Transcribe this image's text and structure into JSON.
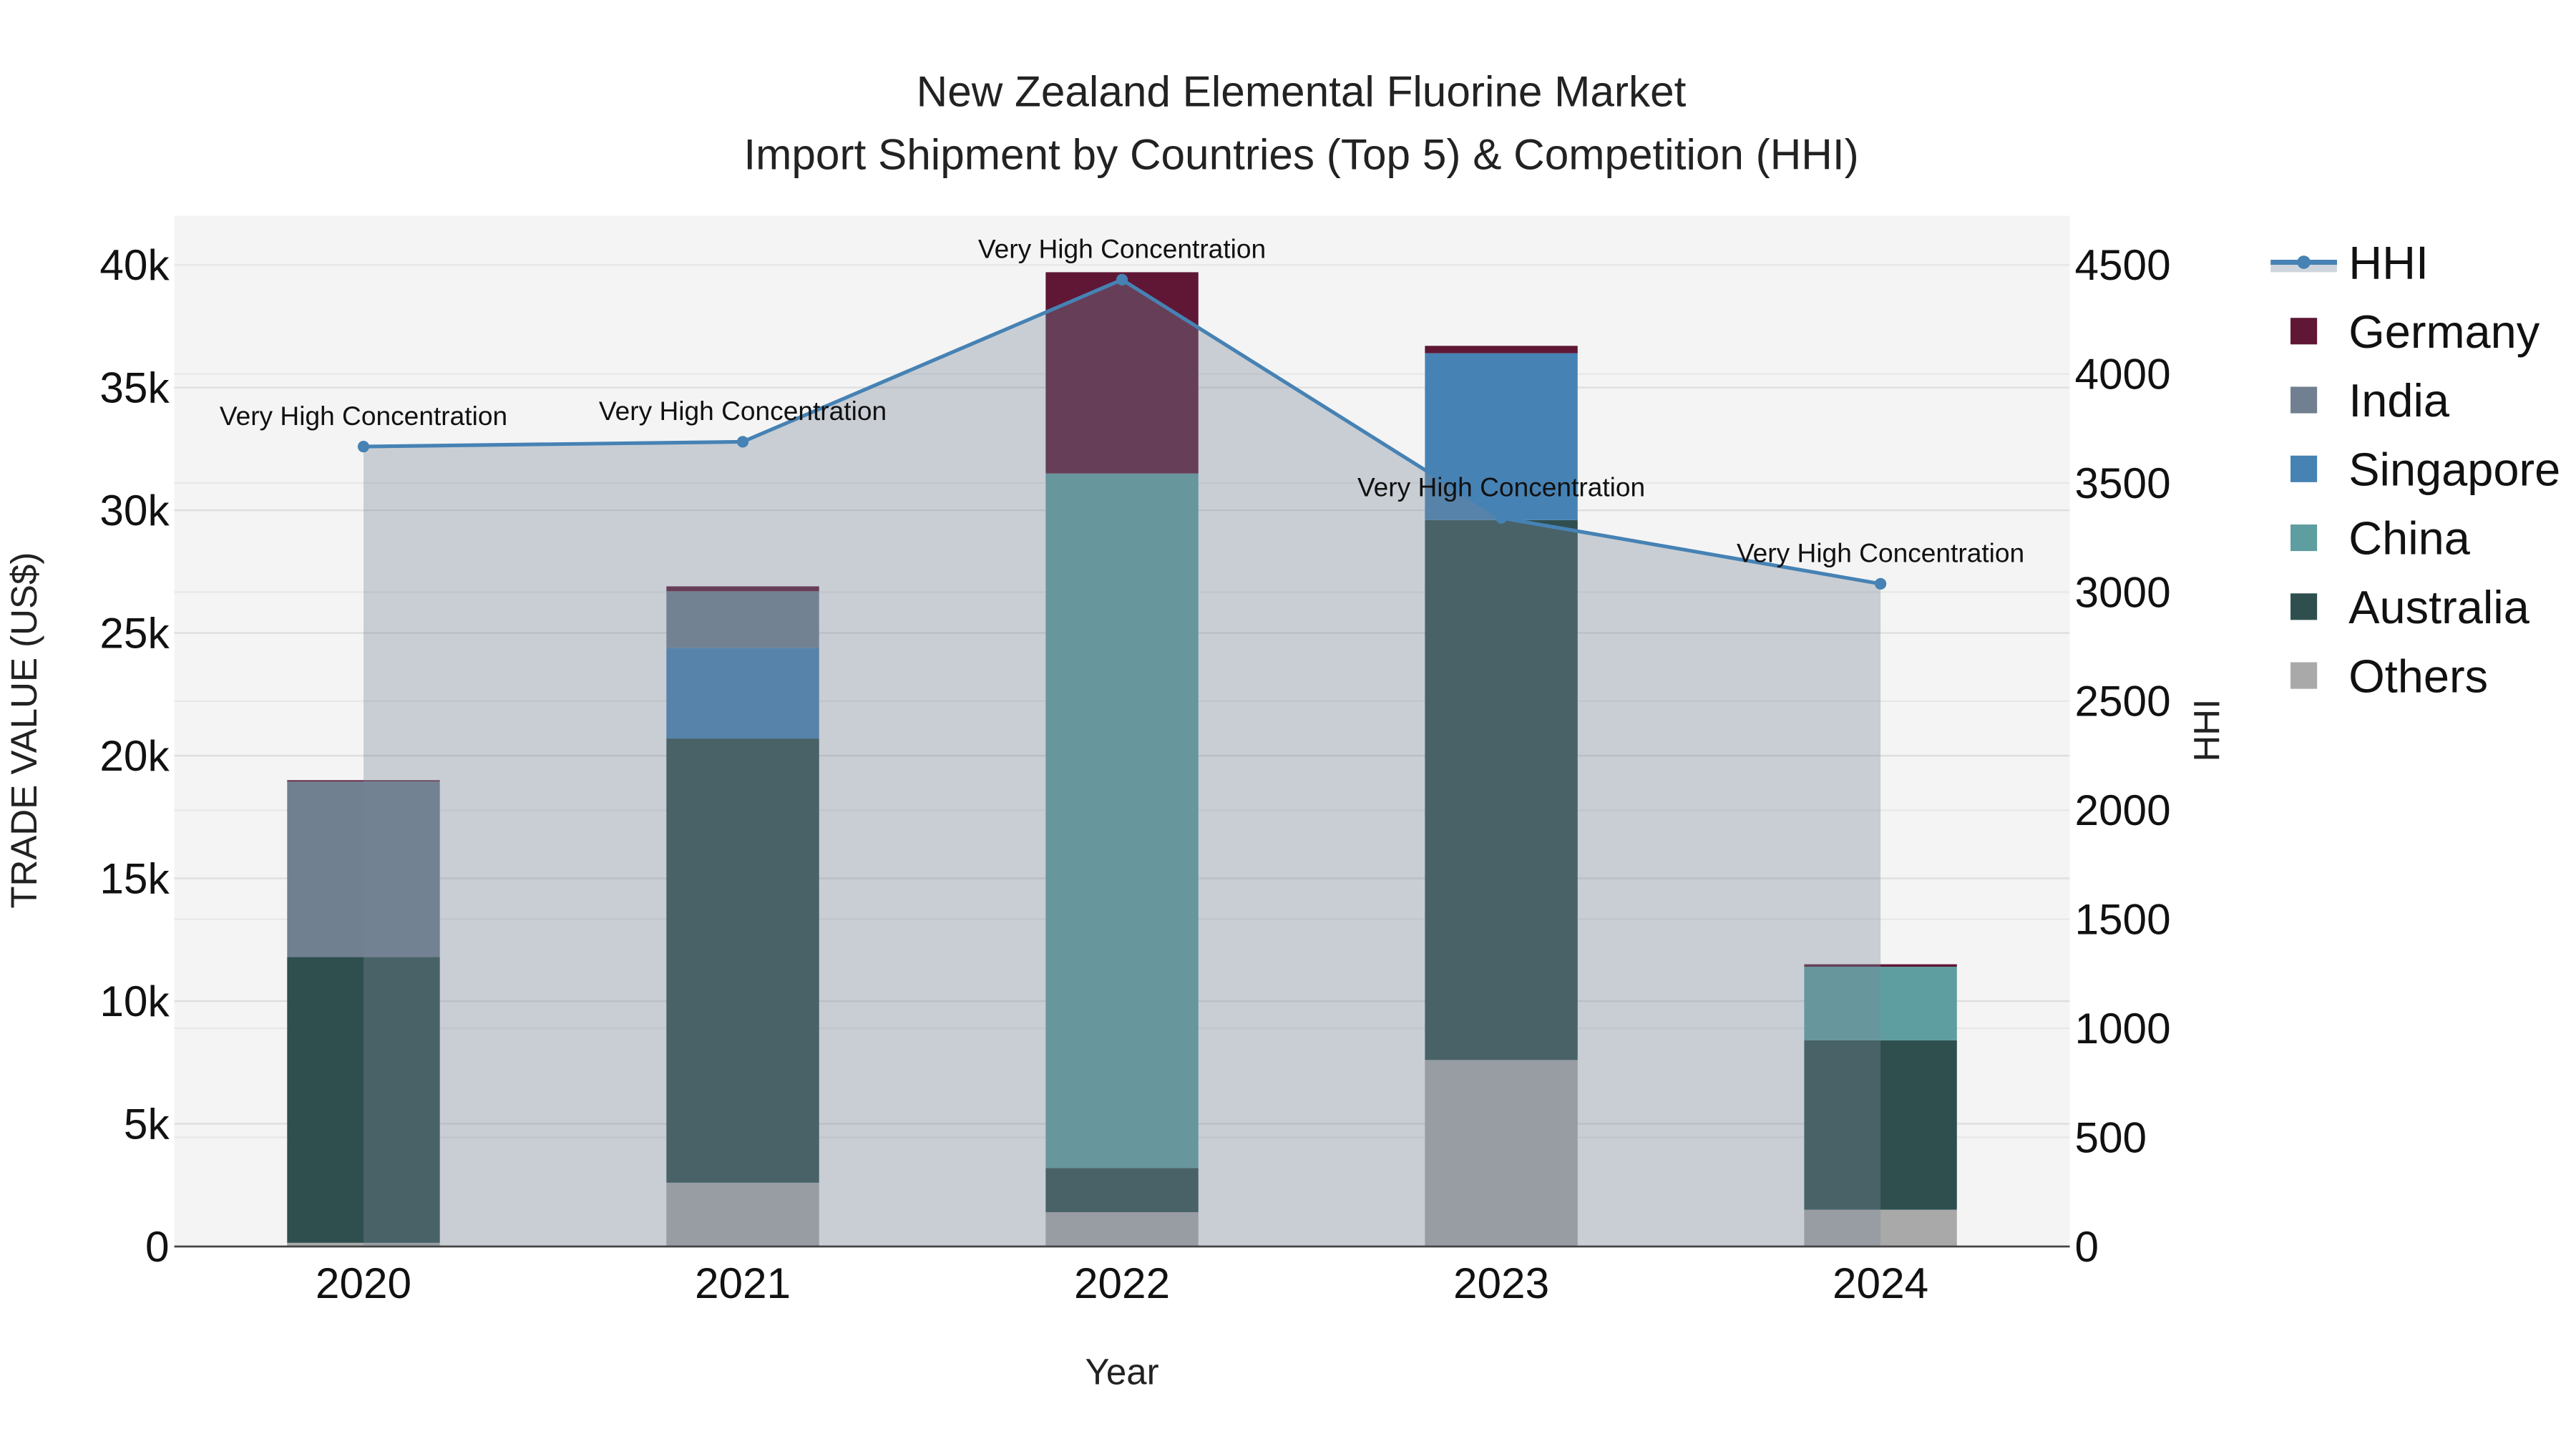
{
  "chart_data": {
    "type": "bar",
    "title": "New Zealand Elemental Fluorine Market",
    "subtitle": "Import Shipment by Countries (Top 5) & Competition (HHI)",
    "xlabel": "Year",
    "ylabel": "TRADE VALUE (US$)",
    "y2label": "HHI",
    "categories": [
      "2020",
      "2021",
      "2022",
      "2023",
      "2024"
    ],
    "ylim": [
      0,
      42000
    ],
    "y2lim": [
      0,
      4725
    ],
    "yticks": [
      0,
      5000,
      10000,
      15000,
      20000,
      25000,
      30000,
      35000,
      40000
    ],
    "ytick_labels": [
      "0",
      "5k",
      "10k",
      "15k",
      "20k",
      "25k",
      "30k",
      "35k",
      "40k"
    ],
    "y2ticks": [
      0,
      500,
      1000,
      1500,
      2000,
      2500,
      3000,
      3500,
      4000,
      4500
    ],
    "y2tick_labels": [
      "0",
      "500",
      "1000",
      "1500",
      "2000",
      "2500",
      "3000",
      "3500",
      "4000",
      "4500"
    ],
    "grid": true,
    "legend_position": "right",
    "stacked": true,
    "series": [
      {
        "name": "Others",
        "color": "#a9a9a9",
        "values": [
          150,
          2600,
          1400,
          7600,
          1500
        ]
      },
      {
        "name": "Australia",
        "color": "#2f4f4f",
        "values": [
          11650,
          18100,
          1800,
          22000,
          6900
        ]
      },
      {
        "name": "China",
        "color": "#5f9ea0",
        "values": [
          0,
          0,
          28300,
          0,
          3000
        ]
      },
      {
        "name": "Singapore",
        "color": "#4682b4",
        "values": [
          0,
          3700,
          0,
          6800,
          0
        ]
      },
      {
        "name": "India",
        "color": "#708090",
        "values": [
          7150,
          2300,
          0,
          0,
          0
        ]
      },
      {
        "name": "Germany",
        "color": "#5f1735",
        "values": [
          50,
          200,
          8200,
          300,
          100
        ]
      }
    ],
    "hhi": {
      "name": "HHI",
      "color": "#4682b4",
      "values": [
        3667,
        3689,
        4432,
        3340,
        3038
      ],
      "annotations": [
        "Very High Concentration",
        "Very High Concentration",
        "Very High Concentration",
        "Very High Concentration",
        "Very High Concentration"
      ]
    },
    "legend": [
      "HHI",
      "Germany",
      "India",
      "Singapore",
      "China",
      "Australia",
      "Others"
    ]
  }
}
